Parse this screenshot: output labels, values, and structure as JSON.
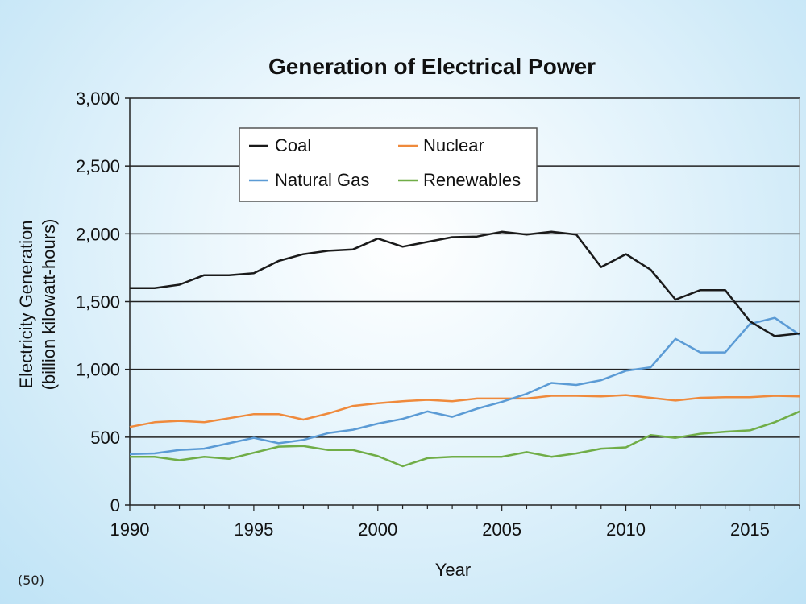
{
  "footnote": "(50)",
  "colors": {
    "coal": "#1a1a1a",
    "nuclear": "#ef8a3c",
    "natural_gas": "#5b9bd5",
    "renewables": "#70ad47",
    "plot_background": "light blue gradient",
    "gridline": "#222222"
  },
  "chart_data": {
    "type": "line",
    "title": "Generation of Electrical Power",
    "xlabel": "Year",
    "ylabel": [
      "Electricity Generation",
      "(billion kilowatt-hours)"
    ],
    "xlim": [
      1990,
      2017
    ],
    "ylim": [
      0,
      3000
    ],
    "x_ticks": [
      1990,
      1995,
      2000,
      2005,
      2010,
      2015
    ],
    "x_tick_labels": [
      "1990",
      "1995",
      "2000",
      "2005",
      "2010",
      "2015"
    ],
    "y_ticks": [
      0,
      500,
      1000,
      1500,
      2000,
      2500,
      3000
    ],
    "y_tick_labels": [
      "0",
      "500",
      "1,000",
      "1,500",
      "2,000",
      "2,500",
      "3,000"
    ],
    "grid": "horizontal",
    "legend_position": "top-left, inside plot",
    "x": [
      1990,
      1991,
      1992,
      1993,
      1994,
      1995,
      1996,
      1997,
      1998,
      1999,
      2000,
      2001,
      2002,
      2003,
      2004,
      2005,
      2006,
      2007,
      2008,
      2009,
      2010,
      2011,
      2012,
      2013,
      2014,
      2015,
      2016,
      2017
    ],
    "series": [
      {
        "name": "Coal",
        "key": "coal",
        "values": [
          1600,
          1600,
          1625,
          1695,
          1695,
          1710,
          1800,
          1850,
          1875,
          1885,
          1965,
          1905,
          1940,
          1975,
          1980,
          2015,
          1995,
          2015,
          1995,
          1755,
          1850,
          1735,
          1515,
          1585,
          1585,
          1355,
          1245,
          1265
        ]
      },
      {
        "name": "Natural Gas",
        "key": "natural_gas",
        "values": [
          375,
          380,
          405,
          415,
          455,
          495,
          455,
          480,
          530,
          555,
          600,
          635,
          690,
          650,
          710,
          760,
          820,
          900,
          885,
          920,
          990,
          1015,
          1225,
          1125,
          1125,
          1335,
          1380,
          1255
        ]
      },
      {
        "name": "Nuclear",
        "key": "nuclear",
        "values": [
          575,
          610,
          620,
          610,
          640,
          670,
          670,
          630,
          675,
          730,
          750,
          765,
          775,
          765,
          785,
          785,
          785,
          805,
          805,
          800,
          810,
          790,
          770,
          790,
          795,
          795,
          805,
          800
        ]
      },
      {
        "name": "Renewables",
        "key": "renewables",
        "values": [
          355,
          355,
          330,
          355,
          340,
          385,
          430,
          435,
          405,
          405,
          360,
          285,
          345,
          355,
          355,
          355,
          390,
          355,
          380,
          415,
          425,
          515,
          495,
          525,
          540,
          550,
          610,
          690
        ]
      }
    ]
  }
}
